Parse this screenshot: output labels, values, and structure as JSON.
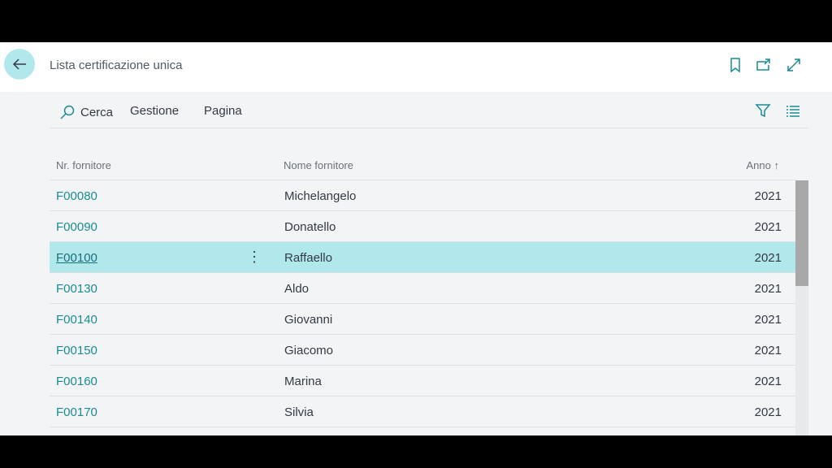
{
  "header": {
    "title": "Lista certificazione unica"
  },
  "toolbar": {
    "search": "Cerca",
    "manage": "Gestione",
    "page": "Pagina"
  },
  "columns": {
    "code": "Nr. fornitore",
    "name": "Nome fornitore",
    "year": "Anno",
    "year_sort": "↑"
  },
  "rows": [
    {
      "code": "F00080",
      "name": "Michelangelo",
      "year": "2021"
    },
    {
      "code": "F00090",
      "name": "Donatello",
      "year": "2021"
    },
    {
      "code": "F00100",
      "name": "Raffaello",
      "year": "2021",
      "selected": true
    },
    {
      "code": "F00130",
      "name": "Aldo",
      "year": "2021"
    },
    {
      "code": "F00140",
      "name": "Giovanni",
      "year": "2021"
    },
    {
      "code": "F00150",
      "name": "Giacomo",
      "year": "2021"
    },
    {
      "code": "F00160",
      "name": "Marina",
      "year": "2021"
    },
    {
      "code": "F00170",
      "name": "Silvia",
      "year": "2021"
    }
  ],
  "colors": {
    "accent": "#1a8b94",
    "selected_row": "#b0e8ec"
  }
}
